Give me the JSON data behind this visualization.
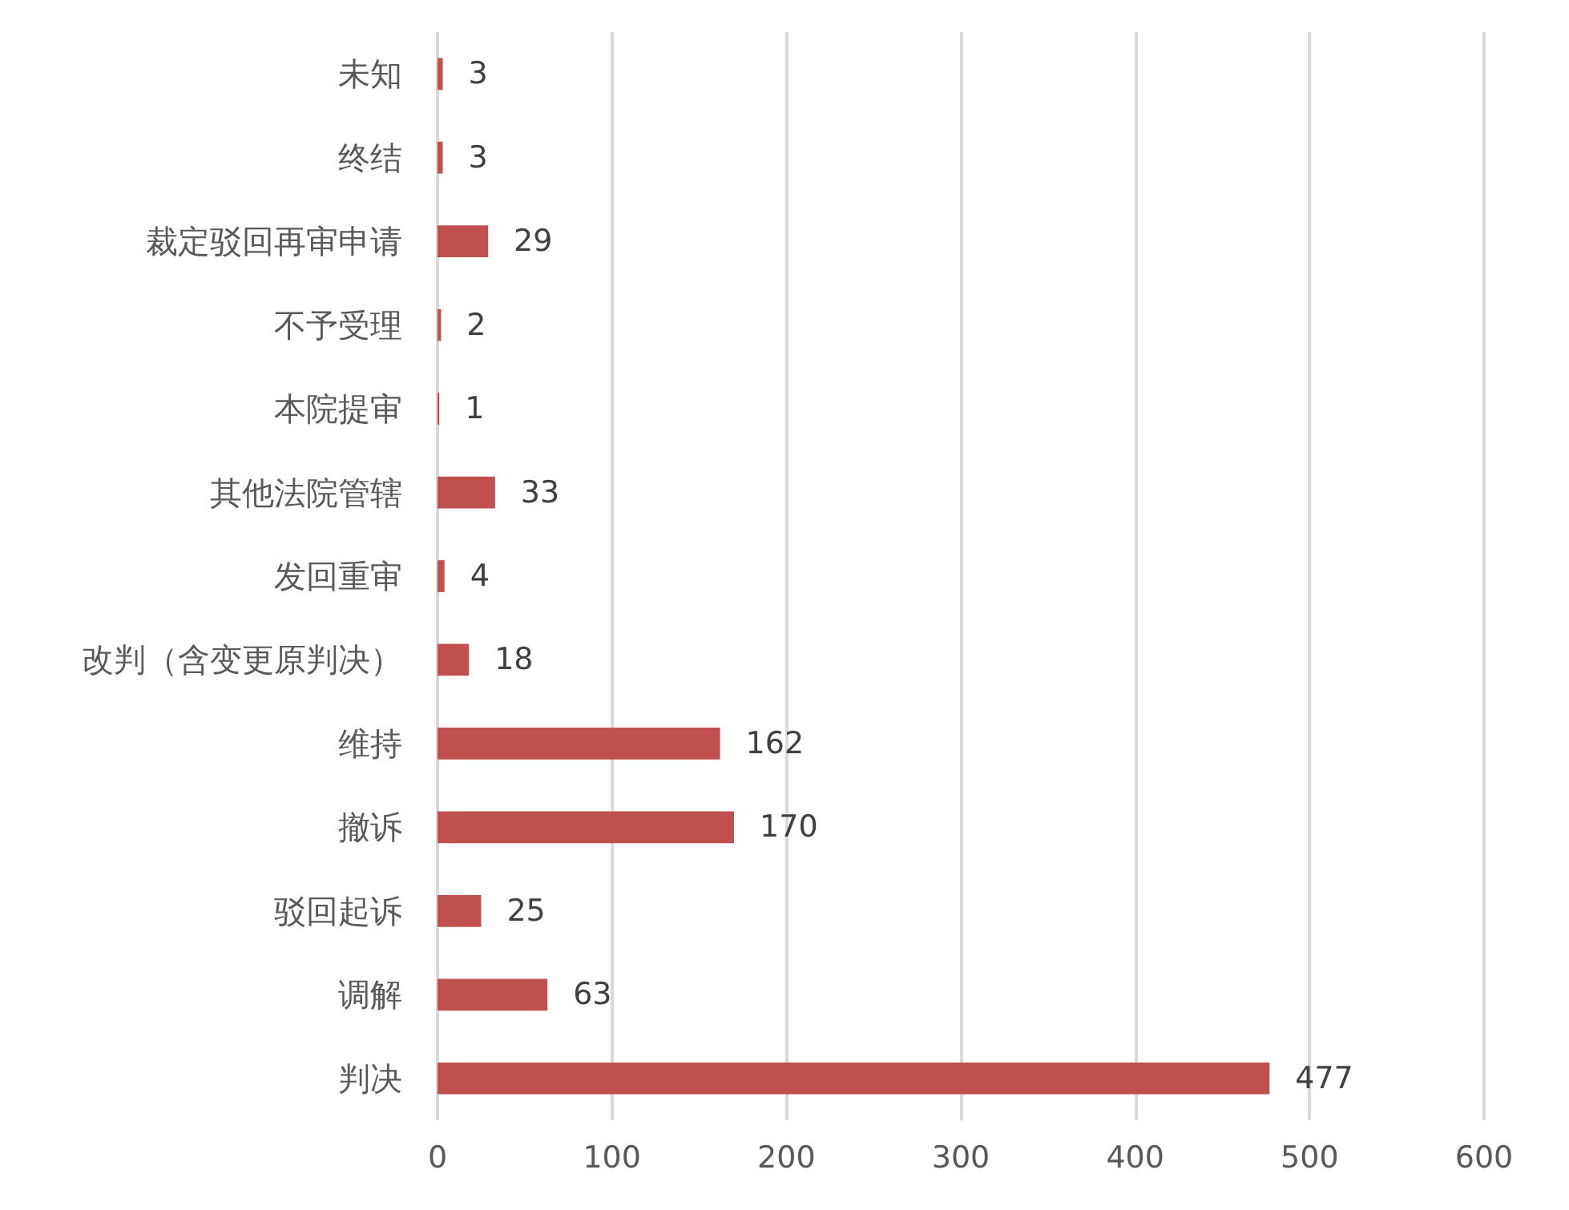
{
  "chart_data": {
    "type": "bar",
    "orientation": "horizontal",
    "categories": [
      "未知",
      "终结",
      "裁定驳回再审申请",
      "不予受理",
      "本院提审",
      "其他法院管辖",
      "发回重审",
      "改判（含变更原判决）",
      "维持",
      "撤诉",
      "驳回起诉",
      "调解",
      "判决"
    ],
    "values": [
      3,
      3,
      29,
      2,
      1,
      33,
      4,
      18,
      162,
      170,
      25,
      63,
      477
    ],
    "color": "#c0504d",
    "data_labels": true,
    "grid": "x",
    "xlim": [
      0,
      600
    ],
    "xticks": [
      0,
      100,
      200,
      300,
      400,
      500,
      600
    ]
  }
}
